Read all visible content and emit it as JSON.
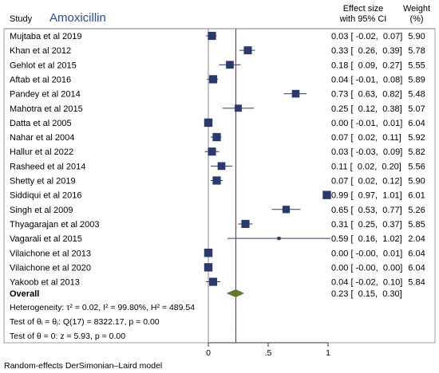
{
  "header": {
    "study_label": "Study",
    "drug": "Amoxicillin",
    "effect_label_1": "Effect size",
    "effect_label_2": "with 95% CI",
    "weight_label_1": "Weight",
    "weight_label_2": "(%)"
  },
  "chart_data": {
    "type": "forest",
    "x_ticks": [
      {
        "value": 0,
        "label": "0"
      },
      {
        "value": 0.5,
        "label": ".5"
      },
      {
        "value": 1,
        "label": "1"
      }
    ],
    "xlim": [
      -0.1,
      1.02
    ],
    "studies": [
      {
        "name": "Mujtaba et al 2019",
        "es": 0.03,
        "lo": -0.02,
        "hi": 0.07,
        "weight": 5.9,
        "ci_text": "0.03 [ -0.02,  0.07]",
        "weight_text": "5.90"
      },
      {
        "name": "Khan et al 2012",
        "es": 0.33,
        "lo": 0.26,
        "hi": 0.39,
        "weight": 5.78,
        "ci_text": "0.33 [  0.26,  0.39]",
        "weight_text": "5.78"
      },
      {
        "name": "Gehlot et al 2015",
        "es": 0.18,
        "lo": 0.09,
        "hi": 0.27,
        "weight": 5.55,
        "ci_text": "0.18 [  0.09,  0.27]",
        "weight_text": "5.55"
      },
      {
        "name": "Aftab et al 2016",
        "es": 0.04,
        "lo": -0.01,
        "hi": 0.08,
        "weight": 5.89,
        "ci_text": "0.04 [ -0.01,  0.08]",
        "weight_text": "5.89"
      },
      {
        "name": "Pandey et al 2014",
        "es": 0.73,
        "lo": 0.63,
        "hi": 0.82,
        "weight": 5.48,
        "ci_text": "0.73 [  0.63,  0.82]",
        "weight_text": "5.48"
      },
      {
        "name": "Mahotra et al 2015",
        "es": 0.25,
        "lo": 0.12,
        "hi": 0.38,
        "weight": 5.07,
        "ci_text": "0.25 [  0.12,  0.38]",
        "weight_text": "5.07"
      },
      {
        "name": "Datta et al 2005",
        "es": 0.0,
        "lo": -0.01,
        "hi": 0.01,
        "weight": 6.04,
        "ci_text": "0.00 [ -0.01,  0.01]",
        "weight_text": "6.04"
      },
      {
        "name": "Nahar et al 2004",
        "es": 0.07,
        "lo": 0.02,
        "hi": 0.11,
        "weight": 5.92,
        "ci_text": "0.07 [  0.02,  0.11]",
        "weight_text": "5.92"
      },
      {
        "name": "Hallur et al 2022",
        "es": 0.03,
        "lo": -0.03,
        "hi": 0.09,
        "weight": 5.82,
        "ci_text": "0.03 [ -0.03,  0.09]",
        "weight_text": "5.82"
      },
      {
        "name": "Rasheed et al 2014",
        "es": 0.11,
        "lo": 0.02,
        "hi": 0.2,
        "weight": 5.56,
        "ci_text": "0.11 [  0.02,  0.20]",
        "weight_text": "5.56"
      },
      {
        "name": "Shetty et al 2019",
        "es": 0.07,
        "lo": 0.02,
        "hi": 0.12,
        "weight": 5.9,
        "ci_text": "0.07 [  0.02,  0.12]",
        "weight_text": "5.90"
      },
      {
        "name": "Siddiqui et al 2016",
        "es": 0.99,
        "lo": 0.97,
        "hi": 1.01,
        "weight": 6.01,
        "ci_text": "0.99 [  0.97,  1.01]",
        "weight_text": "6.01"
      },
      {
        "name": "Singh et al 2009",
        "es": 0.65,
        "lo": 0.53,
        "hi": 0.77,
        "weight": 5.26,
        "ci_text": "0.65 [  0.53,  0.77]",
        "weight_text": "5.26"
      },
      {
        "name": "Thyagarajan et al 2003",
        "es": 0.31,
        "lo": 0.25,
        "hi": 0.37,
        "weight": 5.85,
        "ci_text": "0.31 [  0.25,  0.37]",
        "weight_text": "5.85"
      },
      {
        "name": "Vagarali et al 2015",
        "es": 0.59,
        "lo": 0.16,
        "hi": 1.02,
        "weight": 2.04,
        "ci_text": "0.59 [  0.16,  1.02]",
        "weight_text": "2.04"
      },
      {
        "name": "Vilaichone et al 2013",
        "es": 0.0,
        "lo": -0.0,
        "hi": 0.01,
        "weight": 6.04,
        "ci_text": "0.00 [ -0.00,  0.01]",
        "weight_text": "6.04"
      },
      {
        "name": "Vilaichone et al 2020",
        "es": 0.0,
        "lo": -0.0,
        "hi": 0.0,
        "weight": 6.04,
        "ci_text": "0.00 [ -0.00,  0.00]",
        "weight_text": "6.04"
      },
      {
        "name": "Yakoob et al 2013",
        "es": 0.04,
        "lo": -0.02,
        "hi": 0.1,
        "weight": 5.84,
        "ci_text": "0.04 [ -0.02,  0.10]",
        "weight_text": "5.84"
      }
    ],
    "overall": {
      "name": "Overall",
      "es": 0.23,
      "lo": 0.15,
      "hi": 0.3,
      "ci_text": "0.23 [  0.15,  0.30]"
    },
    "colors": {
      "box": "#2b3a6e",
      "diamond": "#5e7a2a",
      "overall_line": "#8a2a3a",
      "zero_line": "#888888",
      "ci_line": "#2b3a6e"
    }
  },
  "stats": {
    "heterogeneity": "Heterogeneity: τ² = 0.02, I² = 99.80%, H² = 489.54",
    "test_theta_i": "Test of θᵢ = θⱼ: Q(17) = 8322.17, p = 0.00",
    "test_theta": "Test of θ = 0: z = 5.93, p = 0.00"
  },
  "footer": {
    "model": "Random-effects DerSimonian–Laird model"
  }
}
